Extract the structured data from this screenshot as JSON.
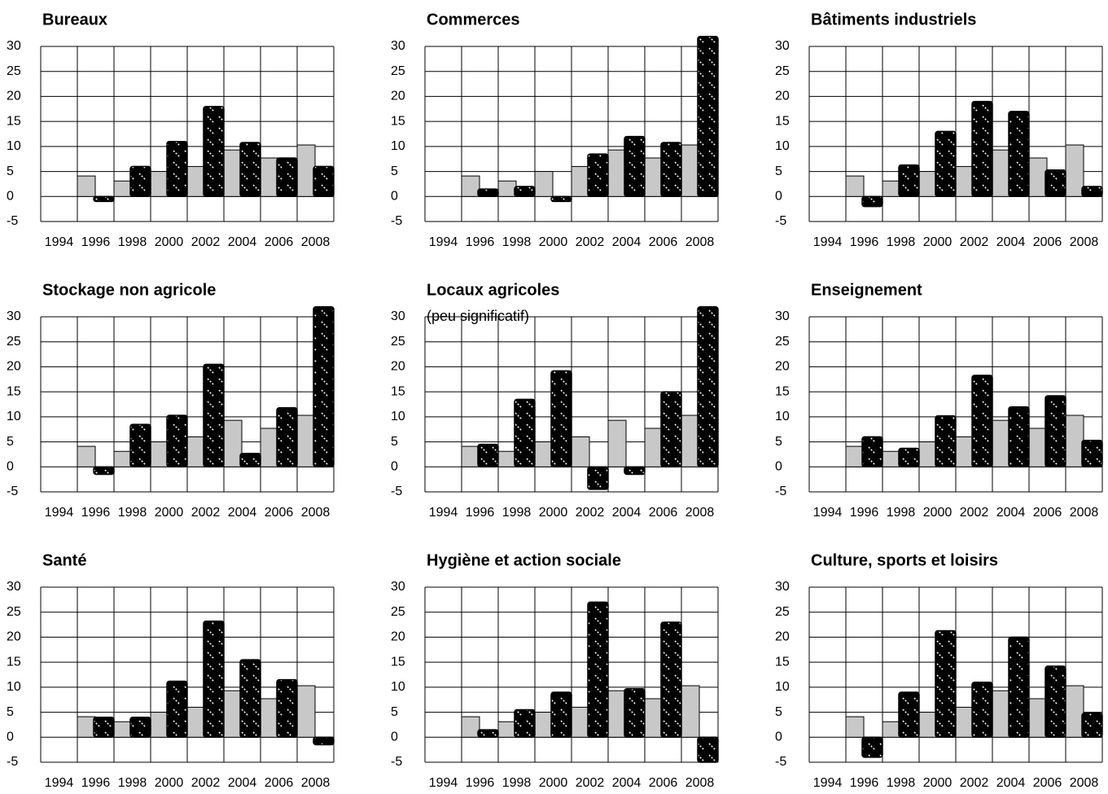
{
  "chart_data": [
    {
      "type": "bar",
      "title": "Bureaux",
      "categories": [
        "1994",
        "1996",
        "1998",
        "2000",
        "2002",
        "2004",
        "2006",
        "2008"
      ],
      "series": [
        {
          "color": "#c8c8c8",
          "values": [
            null,
            4.1,
            3.1,
            5.0,
            6.0,
            9.3,
            7.7,
            10.3
          ]
        },
        {
          "color": "#000000",
          "hatch": true,
          "values": [
            null,
            -1,
            6,
            11,
            18,
            10.8,
            7.7,
            6
          ]
        }
      ],
      "ylim": [
        -5,
        30
      ],
      "yticks": [
        -5,
        0,
        5,
        10,
        15,
        20,
        25,
        30
      ],
      "grid": true
    },
    {
      "type": "bar",
      "title": "Commerces",
      "categories": [
        "1994",
        "1996",
        "1998",
        "2000",
        "2002",
        "2004",
        "2006",
        "2008"
      ],
      "series": [
        {
          "color": "#c8c8c8",
          "values": [
            null,
            4.1,
            3.1,
            5.0,
            6.0,
            9.3,
            7.7,
            10.3
          ]
        },
        {
          "color": "#000000",
          "hatch": true,
          "values": [
            null,
            1.5,
            2,
            -1,
            8.5,
            12,
            10.8,
            32
          ]
        }
      ],
      "ylim": [
        -5,
        30
      ],
      "yticks": [
        -5,
        0,
        5,
        10,
        15,
        20,
        25,
        30
      ],
      "grid": true
    },
    {
      "type": "bar",
      "title": "Bâtiments industriels",
      "categories": [
        "1994",
        "1996",
        "1998",
        "2000",
        "2002",
        "2004",
        "2006",
        "2008"
      ],
      "series": [
        {
          "color": "#c8c8c8",
          "values": [
            null,
            4.1,
            3.1,
            5.0,
            6.0,
            9.3,
            7.7,
            10.3
          ]
        },
        {
          "color": "#000000",
          "hatch": true,
          "values": [
            null,
            -2,
            6.3,
            13,
            19,
            17,
            5.3,
            2
          ]
        }
      ],
      "ylim": [
        -5,
        30
      ],
      "yticks": [
        -5,
        0,
        5,
        10,
        15,
        20,
        25,
        30
      ],
      "grid": true
    },
    {
      "type": "bar",
      "title": "Stockage non agricole",
      "categories": [
        "1994",
        "1996",
        "1998",
        "2000",
        "2002",
        "2004",
        "2006",
        "2008"
      ],
      "series": [
        {
          "color": "#c8c8c8",
          "values": [
            null,
            4.1,
            3.1,
            5.0,
            6.0,
            9.3,
            7.7,
            10.3
          ]
        },
        {
          "color": "#000000",
          "hatch": true,
          "values": [
            null,
            -1.5,
            8.5,
            10.3,
            20.5,
            2.7,
            11.8,
            32
          ]
        }
      ],
      "ylim": [
        -5,
        30
      ],
      "yticks": [
        -5,
        0,
        5,
        10,
        15,
        20,
        25,
        30
      ],
      "grid": true
    },
    {
      "type": "bar",
      "title": "Locaux agricoles",
      "subtitle": "(peu significatif)",
      "categories": [
        "1994",
        "1996",
        "1998",
        "2000",
        "2002",
        "2004",
        "2006",
        "2008"
      ],
      "series": [
        {
          "color": "#c8c8c8",
          "values": [
            null,
            4.1,
            3.1,
            5.0,
            6.0,
            9.3,
            7.7,
            10.3
          ]
        },
        {
          "color": "#000000",
          "hatch": true,
          "values": [
            null,
            4.5,
            13.5,
            19.2,
            -4.5,
            -1.5,
            15,
            32
          ]
        }
      ],
      "ylim": [
        -5,
        30
      ],
      "yticks": [
        -5,
        0,
        5,
        10,
        15,
        20,
        25,
        30
      ],
      "grid": true
    },
    {
      "type": "bar",
      "title": "Enseignement",
      "categories": [
        "1994",
        "1996",
        "1998",
        "2000",
        "2002",
        "2004",
        "2006",
        "2008"
      ],
      "series": [
        {
          "color": "#c8c8c8",
          "values": [
            null,
            4.1,
            3.1,
            5.0,
            6.0,
            9.3,
            7.7,
            10.3
          ]
        },
        {
          "color": "#000000",
          "hatch": true,
          "values": [
            null,
            6,
            3.7,
            10.2,
            18.3,
            12,
            14.2,
            5.3
          ]
        }
      ],
      "ylim": [
        -5,
        30
      ],
      "yticks": [
        -5,
        0,
        5,
        10,
        15,
        20,
        25,
        30
      ],
      "grid": true
    },
    {
      "type": "bar",
      "title": "Santé",
      "categories": [
        "1994",
        "1996",
        "1998",
        "2000",
        "2002",
        "2004",
        "2006",
        "2008"
      ],
      "series": [
        {
          "color": "#c8c8c8",
          "values": [
            null,
            4.1,
            3.1,
            5.0,
            6.0,
            9.3,
            7.7,
            10.3
          ]
        },
        {
          "color": "#000000",
          "hatch": true,
          "values": [
            null,
            4,
            4,
            11.2,
            23.2,
            15.5,
            11.5,
            -1.5
          ]
        }
      ],
      "ylim": [
        -5,
        30
      ],
      "yticks": [
        -5,
        0,
        5,
        10,
        15,
        20,
        25,
        30
      ],
      "grid": true
    },
    {
      "type": "bar",
      "title": "Hygiène et action sociale",
      "categories": [
        "1994",
        "1996",
        "1998",
        "2000",
        "2002",
        "2004",
        "2006",
        "2008"
      ],
      "series": [
        {
          "color": "#c8c8c8",
          "values": [
            null,
            4.1,
            3.1,
            5.0,
            6.0,
            9.3,
            7.7,
            10.3
          ]
        },
        {
          "color": "#000000",
          "hatch": true,
          "values": [
            null,
            1.5,
            5.5,
            9,
            27,
            9.7,
            23,
            -5
          ]
        }
      ],
      "ylim": [
        -5,
        30
      ],
      "yticks": [
        -5,
        0,
        5,
        10,
        15,
        20,
        25,
        30
      ],
      "grid": true
    },
    {
      "type": "bar",
      "title": "Culture, sports et loisirs",
      "categories": [
        "1994",
        "1996",
        "1998",
        "2000",
        "2002",
        "2004",
        "2006",
        "2008"
      ],
      "series": [
        {
          "color": "#c8c8c8",
          "values": [
            null,
            4.1,
            3.1,
            5.0,
            6.0,
            9.3,
            7.7,
            10.3
          ]
        },
        {
          "color": "#000000",
          "hatch": true,
          "values": [
            null,
            -4,
            9,
            21.3,
            11,
            20,
            14.2,
            4.8
          ]
        }
      ],
      "ylim": [
        -5,
        30
      ],
      "yticks": [
        -5,
        0,
        5,
        10,
        15,
        20,
        25,
        30
      ],
      "grid": true
    }
  ]
}
